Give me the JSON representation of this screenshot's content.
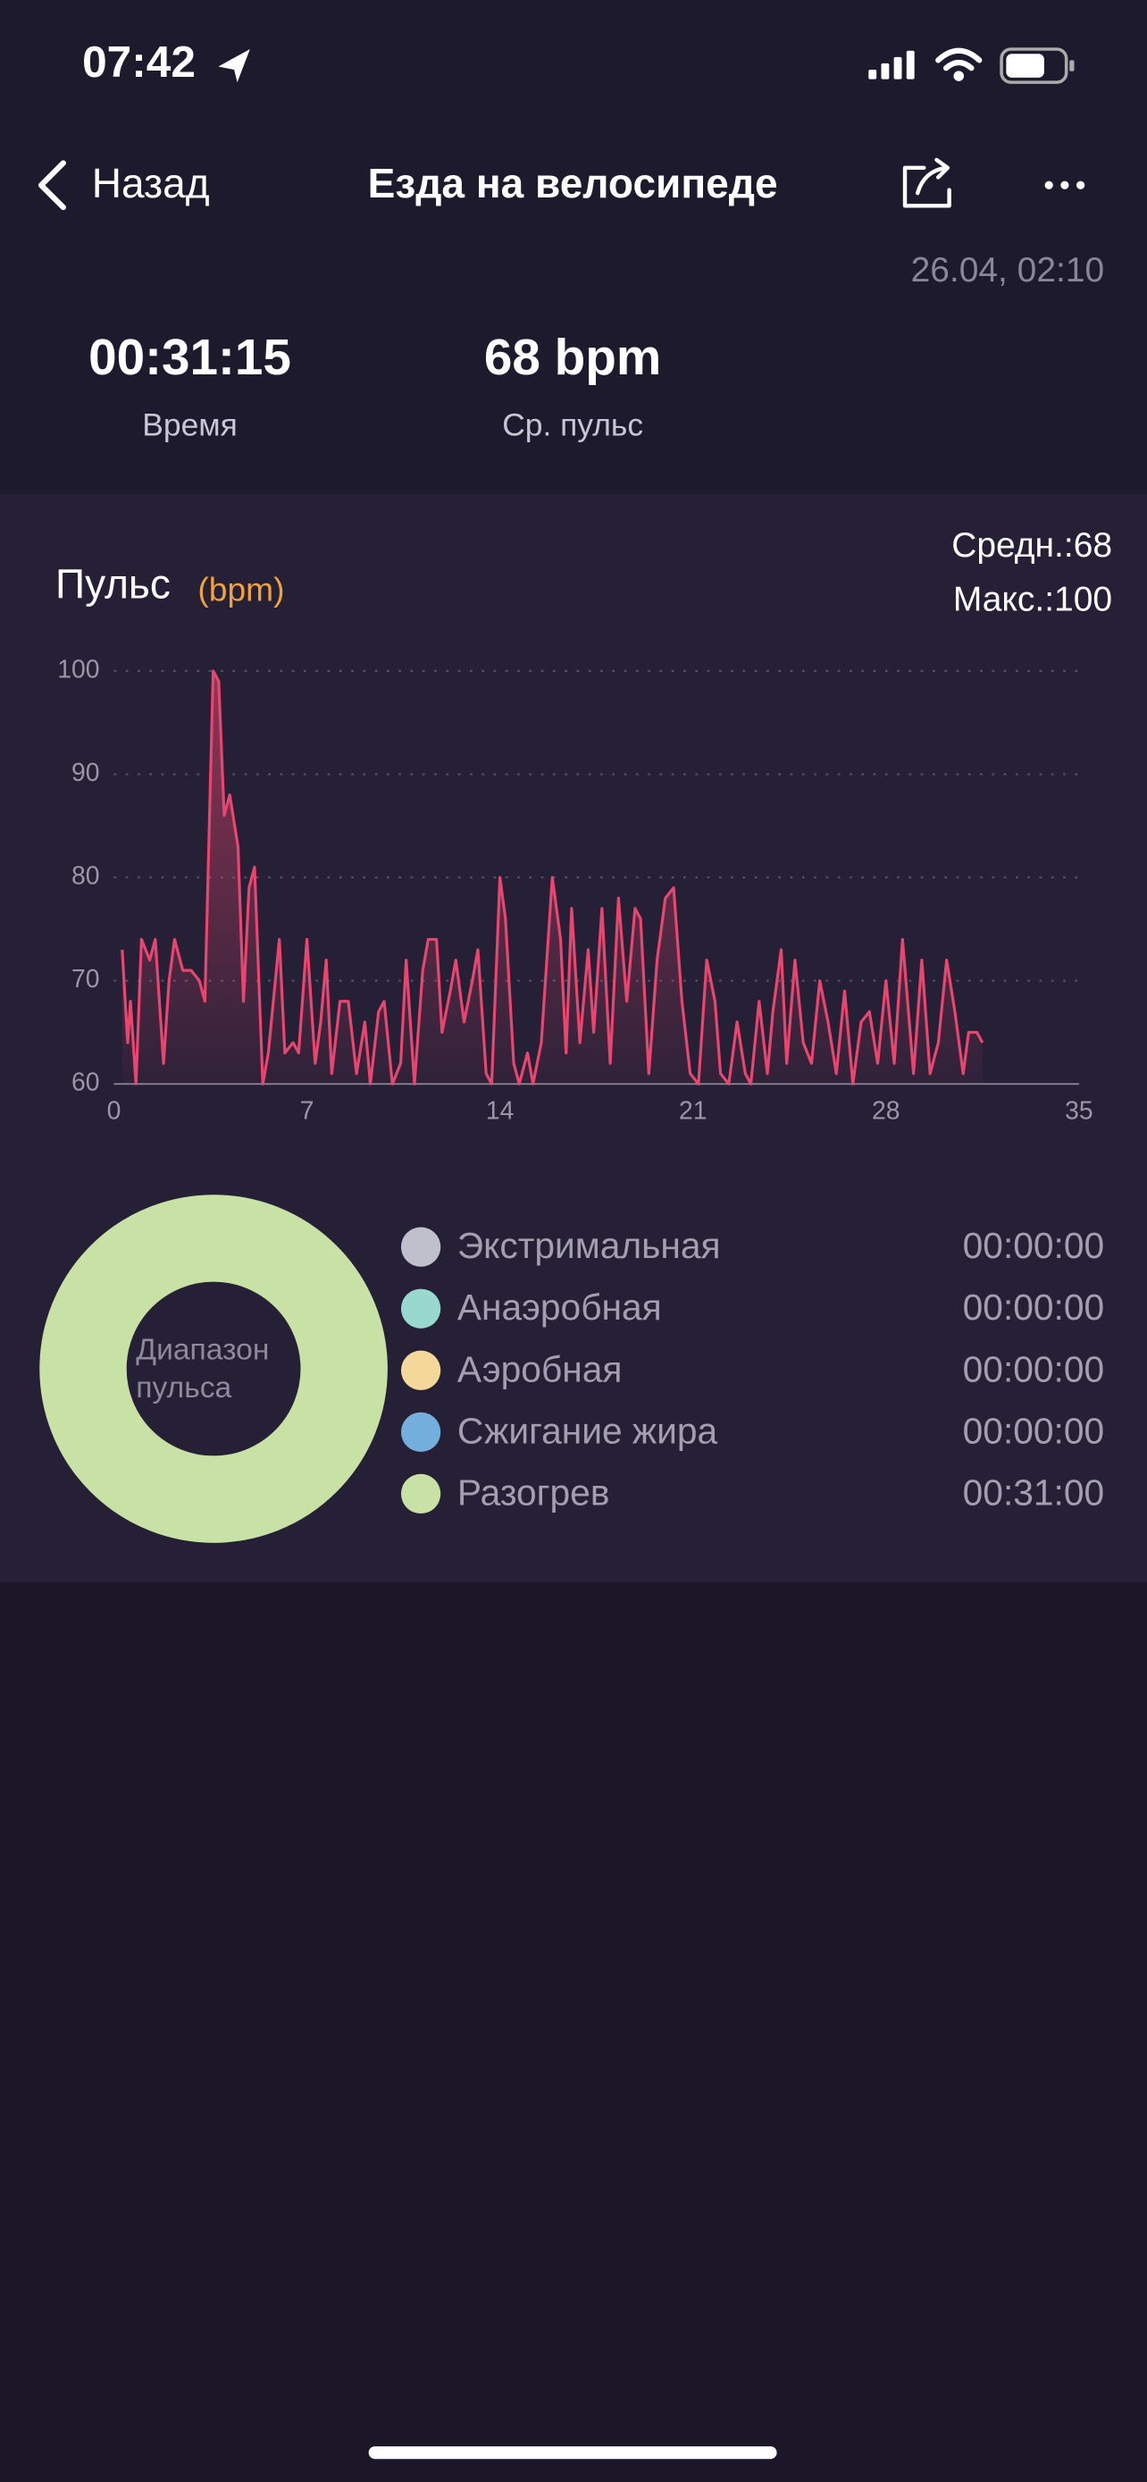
{
  "status_bar": {
    "time": "07:42"
  },
  "nav": {
    "back": "Назад",
    "title": "Езда на велосипеде"
  },
  "date": "26.04, 02:10",
  "stats": [
    {
      "value": "00:31:15",
      "label": "Время"
    },
    {
      "value": "68 bpm",
      "label": "Ср. пульс"
    }
  ],
  "chart_data": {
    "type": "line",
    "title": "Пульс",
    "unit": "(bpm)",
    "summary": [
      "Средн.:68",
      "Макс.:100"
    ],
    "x": [
      0.3,
      0.5,
      0.6,
      0.8,
      1.0,
      1.3,
      1.5,
      1.8,
      2.0,
      2.2,
      2.5,
      2.8,
      3.1,
      3.3,
      3.6,
      3.8,
      4.0,
      4.2,
      4.5,
      4.7,
      4.9,
      5.1,
      5.4,
      5.6,
      6.0,
      6.2,
      6.5,
      6.7,
      7.0,
      7.3,
      7.5,
      7.7,
      7.9,
      8.2,
      8.5,
      8.8,
      9.1,
      9.3,
      9.6,
      9.8,
      10.1,
      10.4,
      10.6,
      10.9,
      11.2,
      11.4,
      11.7,
      11.9,
      12.2,
      12.4,
      12.7,
      13.0,
      13.2,
      13.5,
      13.7,
      14.0,
      14.2,
      14.5,
      14.7,
      15.0,
      15.2,
      15.5,
      15.9,
      16.2,
      16.4,
      16.6,
      16.9,
      17.2,
      17.4,
      17.7,
      18.0,
      18.3,
      18.6,
      18.9,
      19.1,
      19.4,
      19.7,
      20.0,
      20.3,
      20.6,
      20.9,
      21.2,
      21.5,
      21.8,
      22.0,
      22.3,
      22.6,
      22.9,
      23.1,
      23.4,
      23.7,
      23.9,
      24.2,
      24.4,
      24.7,
      25.0,
      25.3,
      25.6,
      25.9,
      26.2,
      26.5,
      26.8,
      27.1,
      27.4,
      27.7,
      28.0,
      28.3,
      28.6,
      29.0,
      29.3,
      29.6,
      29.9,
      30.2,
      30.5,
      30.8,
      31.0,
      31.3,
      31.5
    ],
    "values": [
      73,
      64,
      68,
      60,
      74,
      72,
      74,
      62,
      70,
      74,
      71,
      71,
      70,
      68,
      100,
      99,
      86,
      88,
      83,
      68,
      79,
      81,
      60,
      63,
      74,
      63,
      64,
      63,
      74,
      62,
      66,
      72,
      61,
      68,
      68,
      61,
      66,
      60,
      67,
      68,
      60,
      62,
      72,
      60,
      71,
      74,
      74,
      65,
      69,
      72,
      66,
      70,
      73,
      61,
      60,
      80,
      76,
      62,
      60,
      63,
      60,
      64,
      80,
      74,
      63,
      77,
      64,
      73,
      65,
      77,
      62,
      78,
      68,
      77,
      76,
      61,
      72,
      78,
      79,
      68,
      61,
      60,
      72,
      68,
      61,
      60,
      66,
      61,
      60,
      68,
      61,
      67,
      73,
      62,
      72,
      64,
      62,
      70,
      66,
      61,
      69,
      60,
      66,
      67,
      62,
      70,
      62,
      74,
      61,
      72,
      61,
      64,
      72,
      67,
      61,
      65,
      65,
      64
    ],
    "color": "#e8466e",
    "xlim": [
      0,
      35
    ],
    "xticks": [
      0,
      7,
      14,
      21,
      28,
      35
    ],
    "ylim": [
      60,
      100
    ],
    "yticks": [
      60,
      70,
      80,
      90,
      100
    ],
    "grid": true
  },
  "zones": {
    "center_label": [
      "Диапазон",
      "пульса"
    ],
    "items": [
      {
        "name": "Экстримальная",
        "time": "00:00:00",
        "color": "#c0bfcc"
      },
      {
        "name": "Анаэробная",
        "time": "00:00:00",
        "color": "#99d8cf"
      },
      {
        "name": "Аэробная",
        "time": "00:00:00",
        "color": "#f3d899"
      },
      {
        "name": "Сжигание жира",
        "time": "00:00:00",
        "color": "#74aedc"
      },
      {
        "name": "Разогрев",
        "time": "00:31:00",
        "color": "#c8e2a5"
      }
    ]
  }
}
